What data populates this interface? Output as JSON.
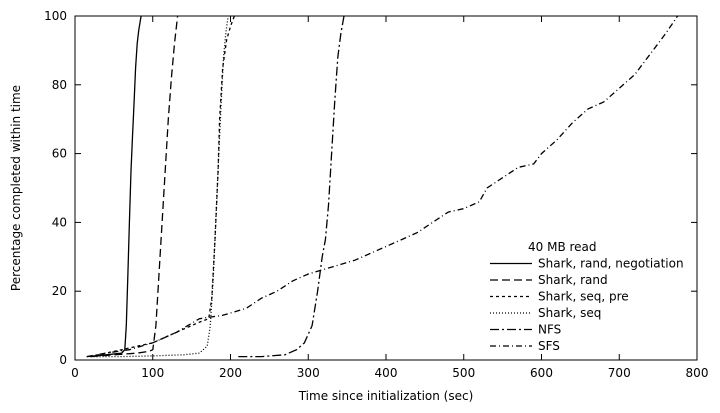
{
  "chart_data": {
    "type": "line",
    "xlabel": "Time since initialization (sec)",
    "ylabel": "Percentage completed within time",
    "xlim": [
      0,
      800
    ],
    "ylim": [
      0,
      100
    ],
    "xticks": [
      0,
      100,
      200,
      300,
      400,
      500,
      600,
      700,
      800
    ],
    "yticks": [
      0,
      20,
      40,
      60,
      80,
      100
    ],
    "grid": false,
    "legend_title": "40 MB read",
    "legend_position": "bottom-right",
    "series": [
      {
        "name": "Shark, rand, negotiation",
        "dash": "",
        "points": [
          [
            15,
            1
          ],
          [
            40,
            1.5
          ],
          [
            60,
            2
          ],
          [
            64,
            3
          ],
          [
            66,
            10
          ],
          [
            68,
            25
          ],
          [
            70,
            40
          ],
          [
            72,
            55
          ],
          [
            74,
            65
          ],
          [
            76,
            75
          ],
          [
            78,
            85
          ],
          [
            80,
            92
          ],
          [
            82,
            96
          ],
          [
            85,
            100
          ]
        ]
      },
      {
        "name": "Shark, rand",
        "dash": "8,4",
        "points": [
          [
            20,
            1
          ],
          [
            50,
            1.5
          ],
          [
            80,
            2
          ],
          [
            95,
            2.5
          ],
          [
            100,
            3
          ],
          [
            104,
            10
          ],
          [
            108,
            25
          ],
          [
            112,
            40
          ],
          [
            116,
            55
          ],
          [
            120,
            70
          ],
          [
            124,
            82
          ],
          [
            128,
            92
          ],
          [
            132,
            100
          ]
        ]
      },
      {
        "name": "Shark, seq, pre",
        "dash": "3,3",
        "points": [
          [
            20,
            1
          ],
          [
            40,
            2
          ],
          [
            60,
            3
          ],
          [
            80,
            4
          ],
          [
            100,
            5
          ],
          [
            120,
            7
          ],
          [
            140,
            9
          ],
          [
            150,
            10
          ],
          [
            160,
            11
          ],
          [
            172,
            12
          ],
          [
            176,
            18
          ],
          [
            180,
            35
          ],
          [
            184,
            55
          ],
          [
            186,
            70
          ],
          [
            190,
            85
          ],
          [
            195,
            93
          ],
          [
            200,
            97
          ],
          [
            205,
            100
          ]
        ]
      },
      {
        "name": "Shark, seq",
        "dash": "1,2",
        "points": [
          [
            20,
            1
          ],
          [
            60,
            1
          ],
          [
            100,
            1.2
          ],
          [
            140,
            1.5
          ],
          [
            160,
            2
          ],
          [
            170,
            4
          ],
          [
            174,
            10
          ],
          [
            178,
            25
          ],
          [
            182,
            45
          ],
          [
            185,
            60
          ],
          [
            188,
            75
          ],
          [
            191,
            88
          ],
          [
            194,
            95
          ],
          [
            197,
            100
          ]
        ]
      },
      {
        "name": "NFS",
        "dash": "9,3,2,3",
        "points": [
          [
            210,
            1
          ],
          [
            240,
            1
          ],
          [
            270,
            1.5
          ],
          [
            285,
            3
          ],
          [
            295,
            5
          ],
          [
            305,
            10
          ],
          [
            312,
            20
          ],
          [
            318,
            30
          ],
          [
            322,
            35
          ],
          [
            326,
            45
          ],
          [
            330,
            60
          ],
          [
            334,
            75
          ],
          [
            338,
            88
          ],
          [
            342,
            95
          ],
          [
            346,
            100
          ]
        ]
      },
      {
        "name": "SFS",
        "dash": "6,3,1,3",
        "points": [
          [
            15,
            1
          ],
          [
            40,
            2
          ],
          [
            70,
            3
          ],
          [
            100,
            5
          ],
          [
            130,
            8
          ],
          [
            160,
            12
          ],
          [
            190,
            13
          ],
          [
            220,
            15
          ],
          [
            240,
            18
          ],
          [
            260,
            20
          ],
          [
            280,
            23
          ],
          [
            300,
            25
          ],
          [
            330,
            27
          ],
          [
            360,
            29
          ],
          [
            380,
            31
          ],
          [
            400,
            33
          ],
          [
            420,
            35
          ],
          [
            440,
            37
          ],
          [
            460,
            40
          ],
          [
            480,
            43
          ],
          [
            500,
            44
          ],
          [
            520,
            46
          ],
          [
            530,
            50
          ],
          [
            550,
            53
          ],
          [
            570,
            56
          ],
          [
            590,
            57
          ],
          [
            600,
            60
          ],
          [
            620,
            64
          ],
          [
            640,
            69
          ],
          [
            660,
            73
          ],
          [
            680,
            75
          ],
          [
            700,
            79
          ],
          [
            720,
            83
          ],
          [
            740,
            89
          ],
          [
            760,
            95
          ],
          [
            775,
            100
          ]
        ]
      }
    ]
  }
}
